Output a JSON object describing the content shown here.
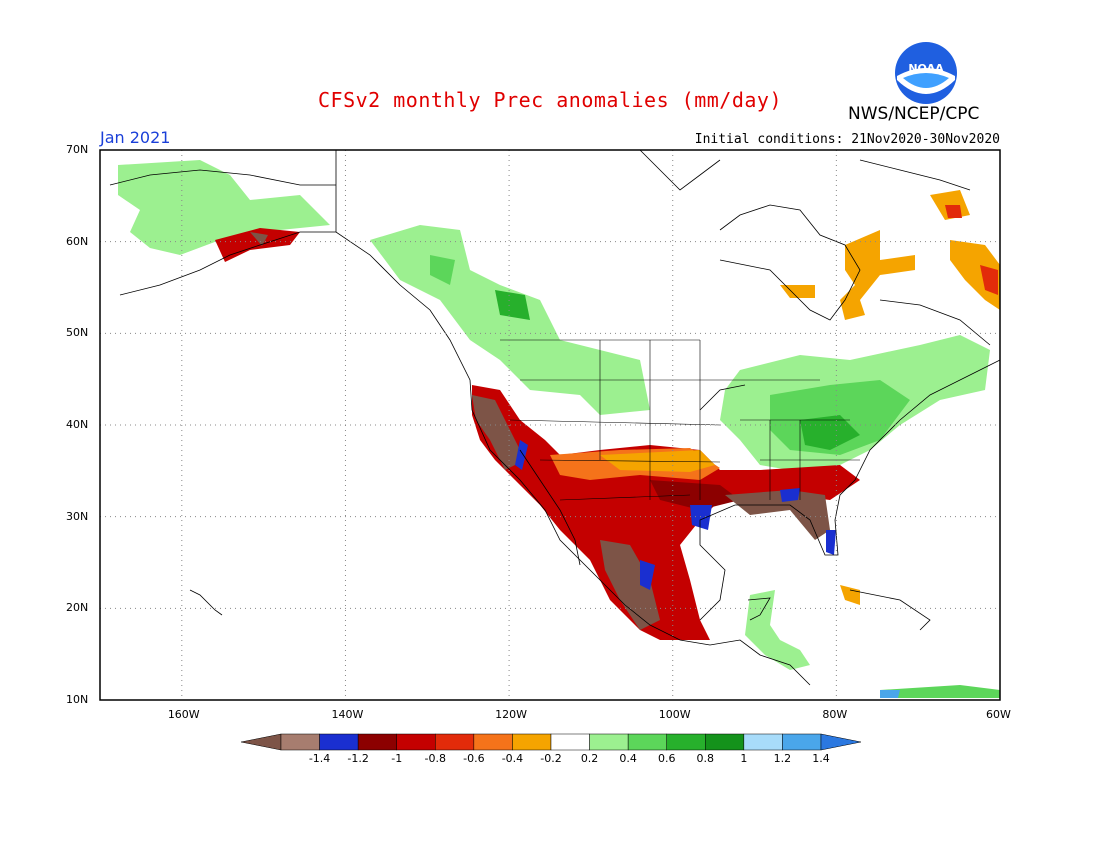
{
  "header": {
    "title": "CFSv2 monthly Prec anomalies (mm/day)",
    "month": "Jan 2021",
    "initial_conditions": "Initial conditions: 21Nov2020-30Nov2020",
    "agency": "NWS/NCEP/CPC",
    "logo_text": "NOAA"
  },
  "axes": {
    "lat_labels": [
      "70N",
      "60N",
      "50N",
      "40N",
      "30N",
      "20N",
      "10N"
    ],
    "lon_labels": [
      "160W",
      "140W",
      "120W",
      "100W",
      "80W",
      "60W"
    ]
  },
  "legend": {
    "tick_labels": [
      "-1.4",
      "-1.2",
      "-1",
      "-0.8",
      "-0.6",
      "-0.4",
      "-0.2",
      "0.2",
      "0.4",
      "0.6",
      "0.8",
      "1",
      "1.2",
      "1.4"
    ],
    "colors": [
      "#7d5447",
      "#a77d6f",
      "#1a2fd0",
      "#8c0000",
      "#c40000",
      "#e22b0a",
      "#f5731a",
      "#f5a400",
      "#ffffff",
      "#9cf090",
      "#5cd65a",
      "#27b02c",
      "#14921b",
      "#a8dcfa",
      "#4aa6ea",
      "#2b78e0"
    ]
  },
  "map_style": {
    "frame_lon_range": [
      -170,
      -60
    ],
    "frame_lat_range": [
      10,
      70
    ],
    "grid": "dotted every 20 deg longitude and 10 deg latitude",
    "coastline_color": "#000000"
  }
}
